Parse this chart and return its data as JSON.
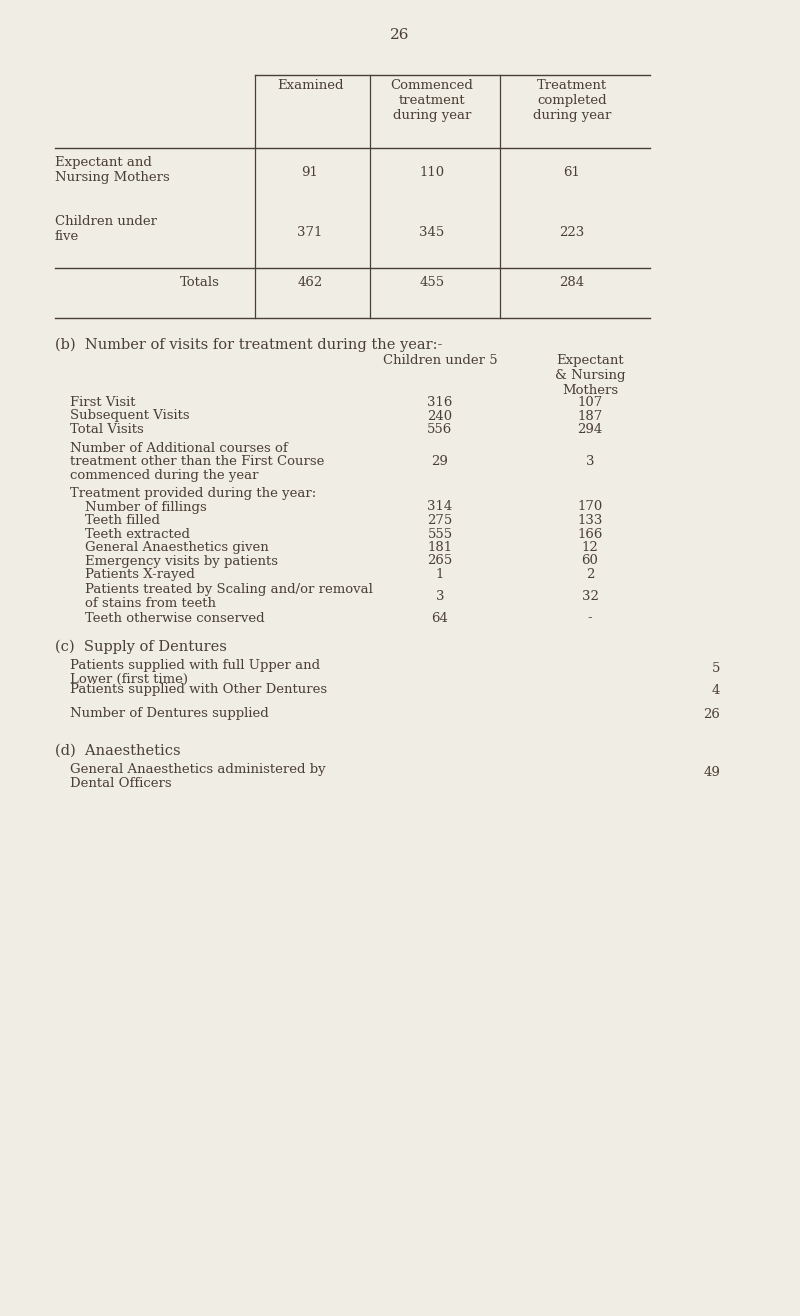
{
  "page_number": "26",
  "bg_color": "#f0ede4",
  "text_color": "#4a3f35",
  "table1_col_headers": [
    "Examined",
    "Commenced\ntreatment\nduring year",
    "Treatment\ncompleted\nduring year"
  ],
  "table1_rows": [
    {
      "label": "Expectant and\nNursing Mothers",
      "vals": [
        "91",
        "110",
        "61"
      ]
    },
    {
      "label": "Children under\nfive",
      "vals": [
        "371",
        "345",
        "223"
      ]
    },
    {
      "label": "Totals",
      "vals": [
        "462",
        "455",
        "284"
      ]
    }
  ],
  "section_b_title": "(b)  Number of visits for treatment during the year:-",
  "section_b_col1": "Children under 5",
  "section_b_col2": "Expectant\n& Nursing\nMothers",
  "section_b_rows": [
    {
      "label": "First Visit",
      "v1": "316",
      "v2": "107",
      "indent": false
    },
    {
      "label": "Subsequent Visits",
      "v1": "240",
      "v2": "187",
      "indent": false
    },
    {
      "label": "Total Visits",
      "v1": "556",
      "v2": "294",
      "indent": false
    },
    {
      "label": "Number of Additional courses of\ntreatment other than the First Course\ncommenced during the year",
      "v1": "29",
      "v2": "3",
      "indent": false
    },
    {
      "label": "Treatment provided during the year:",
      "v1": "",
      "v2": "",
      "indent": false
    },
    {
      "label": "Number of fillings",
      "v1": "314",
      "v2": "170",
      "indent": true
    },
    {
      "label": "Teeth filled",
      "v1": "275",
      "v2": "133",
      "indent": true
    },
    {
      "label": "Teeth extracted",
      "v1": "555",
      "v2": "166",
      "indent": true
    },
    {
      "label": "General Anaesthetics given",
      "v1": "181",
      "v2": "12",
      "indent": true
    },
    {
      "label": "Emergency visits by patients",
      "v1": "265",
      "v2": "60",
      "indent": true
    },
    {
      "label": "Patients X-rayed",
      "v1": "1",
      "v2": "2",
      "indent": true
    },
    {
      "label": "Patients treated by Scaling and/or removal\nof stains from teeth",
      "v1": "3",
      "v2": "32",
      "indent": true
    },
    {
      "label": "Teeth otherwise conserved",
      "v1": "64",
      "v2": "-",
      "indent": true
    }
  ],
  "section_c_title": "(c)  Supply of Dentures",
  "section_c_rows": [
    {
      "label": "Patients supplied with full Upper and\nLower (first time)",
      "v": "5"
    },
    {
      "label": "Patients supplied with Other Dentures",
      "v": "4"
    },
    {
      "label": "Number of Dentures supplied",
      "v": "26"
    }
  ],
  "section_d_title": "(d)  Anaesthetics",
  "section_d_rows": [
    {
      "label": "General Anaesthetics administered by\nDental Officers",
      "v": "49"
    }
  ]
}
